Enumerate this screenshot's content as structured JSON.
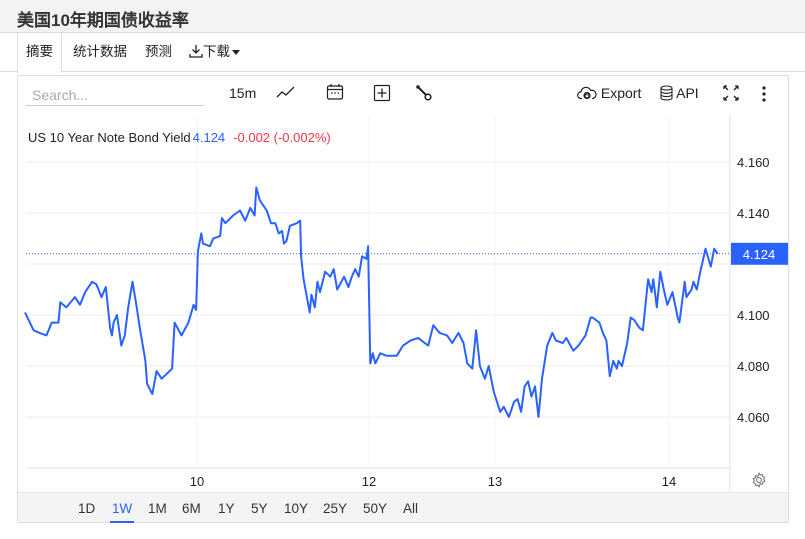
{
  "header": {
    "title": "美国10年期国债收益率"
  },
  "tabs": [
    {
      "label": "摘要",
      "active": true
    },
    {
      "label": "统计数据"
    },
    {
      "label": "预测"
    },
    {
      "label": "下载",
      "icon": "download-icon"
    }
  ],
  "toolbar": {
    "search_placeholder": "Search...",
    "interval": "15m",
    "export_label": "Export",
    "api_label": "API",
    "icons": [
      "line-chart-icon",
      "calendar-icon",
      "add-indicator-icon",
      "wrench-icon",
      "cloud-download-icon",
      "database-icon",
      "fullscreen-icon",
      "more-vertical-icon"
    ]
  },
  "legend": {
    "name": "US 10 Year Note Bond Yield",
    "value": "4.124",
    "change": "-0.002 (-0.002%)"
  },
  "ranges": [
    {
      "label": "1D"
    },
    {
      "label": "1W",
      "active": true
    },
    {
      "label": "1M"
    },
    {
      "label": "6M"
    },
    {
      "label": "1Y"
    },
    {
      "label": "5Y"
    },
    {
      "label": "10Y"
    },
    {
      "label": "25Y"
    },
    {
      "label": "50Y"
    },
    {
      "label": "All"
    }
  ],
  "colors": {
    "line": "#2962ff",
    "negative": "#f23645",
    "price_label_bg": "#2962ff"
  },
  "chart_data": {
    "type": "line",
    "title": "",
    "xlabel": "",
    "ylabel": "",
    "x_ticks": [
      {
        "value": 10,
        "label": "10"
      },
      {
        "value": 12,
        "label": "12"
      },
      {
        "value": 13,
        "label": "13"
      },
      {
        "value": 14,
        "label": "14"
      }
    ],
    "y_ticks": [
      "4.160",
      "4.140",
      "4.100",
      "4.080",
      "4.060"
    ],
    "ylim": [
      4.047,
      4.178
    ],
    "grid": true,
    "last_value_label": "4.124",
    "series": [
      {
        "points": [
          [
            8.0,
            4.101
          ],
          [
            8.1,
            4.094
          ],
          [
            8.17,
            4.093
          ],
          [
            8.25,
            4.092
          ],
          [
            8.31,
            4.097
          ],
          [
            8.39,
            4.097
          ],
          [
            8.41,
            4.105
          ],
          [
            8.48,
            4.103
          ],
          [
            8.58,
            4.107
          ],
          [
            8.64,
            4.104
          ],
          [
            8.7,
            4.109
          ],
          [
            8.78,
            4.113
          ],
          [
            8.83,
            4.112
          ],
          [
            8.89,
            4.107
          ],
          [
            8.94,
            4.111
          ],
          [
            8.99,
            4.095
          ],
          [
            9.01,
            4.092
          ],
          [
            9.03,
            4.097
          ],
          [
            9.07,
            4.1
          ],
          [
            9.12,
            4.088
          ],
          [
            9.16,
            4.092
          ],
          [
            9.2,
            4.103
          ],
          [
            9.25,
            4.113
          ],
          [
            9.29,
            4.105
          ],
          [
            9.34,
            4.094
          ],
          [
            9.4,
            4.082
          ],
          [
            9.42,
            4.073
          ],
          [
            9.48,
            4.069
          ],
          [
            9.53,
            4.078
          ],
          [
            9.59,
            4.075
          ],
          [
            9.65,
            4.077
          ],
          [
            9.71,
            4.079
          ],
          [
            9.74,
            4.097
          ],
          [
            9.82,
            4.092
          ],
          [
            9.9,
            4.097
          ],
          [
            9.96,
            4.104
          ],
          [
            9.99,
            4.102
          ],
          [
            10.01,
            4.125
          ],
          [
            10.05,
            4.132
          ],
          [
            10.07,
            4.128
          ],
          [
            10.15,
            4.127
          ],
          [
            10.19,
            4.13
          ],
          [
            10.27,
            4.131
          ],
          [
            10.29,
            4.138
          ],
          [
            10.33,
            4.136
          ],
          [
            10.42,
            4.139
          ],
          [
            10.5,
            4.141
          ],
          [
            10.56,
            4.137
          ],
          [
            10.62,
            4.142
          ],
          [
            10.67,
            4.139
          ],
          [
            10.69,
            4.15
          ],
          [
            10.73,
            4.145
          ],
          [
            10.81,
            4.141
          ],
          [
            10.86,
            4.136
          ],
          [
            10.91,
            4.136
          ],
          [
            10.95,
            4.132
          ],
          [
            10.99,
            4.133
          ],
          [
            11.01,
            4.128
          ],
          [
            11.04,
            4.129
          ],
          [
            11.08,
            4.135
          ],
          [
            11.16,
            4.136
          ],
          [
            11.2,
            4.137
          ],
          [
            11.21,
            4.123
          ],
          [
            11.24,
            4.114
          ],
          [
            11.31,
            4.101
          ],
          [
            11.33,
            4.108
          ],
          [
            11.37,
            4.103
          ],
          [
            11.4,
            4.113
          ],
          [
            11.43,
            4.109
          ],
          [
            11.49,
            4.117
          ],
          [
            11.55,
            4.115
          ],
          [
            11.59,
            4.118
          ],
          [
            11.63,
            4.11
          ],
          [
            11.71,
            4.115
          ],
          [
            11.76,
            4.111
          ],
          [
            11.8,
            4.115
          ],
          [
            11.84,
            4.118
          ],
          [
            11.88,
            4.115
          ],
          [
            11.92,
            4.123
          ],
          [
            11.97,
            4.122
          ],
          [
            11.99,
            4.127
          ],
          [
            12.01,
            4.081
          ],
          [
            12.03,
            4.085
          ],
          [
            12.05,
            4.081
          ],
          [
            12.09,
            4.085
          ],
          [
            12.14,
            4.084
          ],
          [
            12.22,
            4.084
          ],
          [
            12.27,
            4.088
          ],
          [
            12.33,
            4.09
          ],
          [
            12.39,
            4.091
          ],
          [
            12.47,
            4.088
          ],
          [
            12.51,
            4.096
          ],
          [
            12.56,
            4.093
          ],
          [
            12.62,
            4.092
          ],
          [
            12.66,
            4.089
          ],
          [
            12.71,
            4.093
          ],
          [
            12.75,
            4.089
          ],
          [
            12.78,
            4.081
          ],
          [
            12.82,
            4.079
          ],
          [
            12.85,
            4.094
          ],
          [
            12.88,
            4.08
          ],
          [
            12.92,
            4.075
          ],
          [
            12.95,
            4.08
          ],
          [
            12.99,
            4.07
          ],
          [
            13.03,
            4.062
          ],
          [
            13.05,
            4.064
          ],
          [
            13.08,
            4.06
          ],
          [
            13.11,
            4.066
          ],
          [
            13.13,
            4.067
          ],
          [
            13.15,
            4.062
          ],
          [
            13.17,
            4.072
          ],
          [
            13.19,
            4.074
          ],
          [
            13.21,
            4.068
          ],
          [
            13.23,
            4.072
          ],
          [
            13.25,
            4.06
          ],
          [
            13.27,
            4.075
          ],
          [
            13.3,
            4.088
          ],
          [
            13.33,
            4.093
          ],
          [
            13.35,
            4.09
          ],
          [
            13.39,
            4.089
          ],
          [
            13.41,
            4.091
          ],
          [
            13.45,
            4.086
          ],
          [
            13.48,
            4.088
          ],
          [
            13.52,
            4.092
          ],
          [
            13.55,
            4.099
          ],
          [
            13.56,
            4.099
          ],
          [
            13.6,
            4.097
          ],
          [
            13.62,
            4.093
          ],
          [
            13.64,
            4.09
          ],
          [
            13.66,
            4.076
          ],
          [
            13.68,
            4.082
          ],
          [
            13.7,
            4.079
          ],
          [
            13.71,
            4.082
          ],
          [
            13.73,
            4.08
          ],
          [
            13.76,
            4.089
          ],
          [
            13.78,
            4.099
          ],
          [
            13.8,
            4.098
          ],
          [
            13.83,
            4.095
          ],
          [
            13.85,
            4.094
          ],
          [
            13.88,
            4.114
          ],
          [
            13.9,
            4.109
          ],
          [
            13.91,
            4.114
          ],
          [
            13.93,
            4.103
          ],
          [
            13.95,
            4.117
          ],
          [
            13.97,
            4.11
          ],
          [
            13.99,
            4.104
          ],
          [
            14.02,
            4.109
          ],
          [
            14.05,
            4.099
          ],
          [
            14.06,
            4.097
          ],
          [
            14.09,
            4.113
          ],
          [
            14.1,
            4.107
          ],
          [
            14.13,
            4.11
          ],
          [
            14.14,
            4.113
          ],
          [
            14.16,
            4.11
          ],
          [
            14.18,
            4.117
          ],
          [
            14.19,
            4.12
          ],
          [
            14.21,
            4.126
          ],
          [
            14.24,
            4.119
          ],
          [
            14.26,
            4.126
          ],
          [
            14.28,
            4.124
          ]
        ]
      }
    ]
  }
}
